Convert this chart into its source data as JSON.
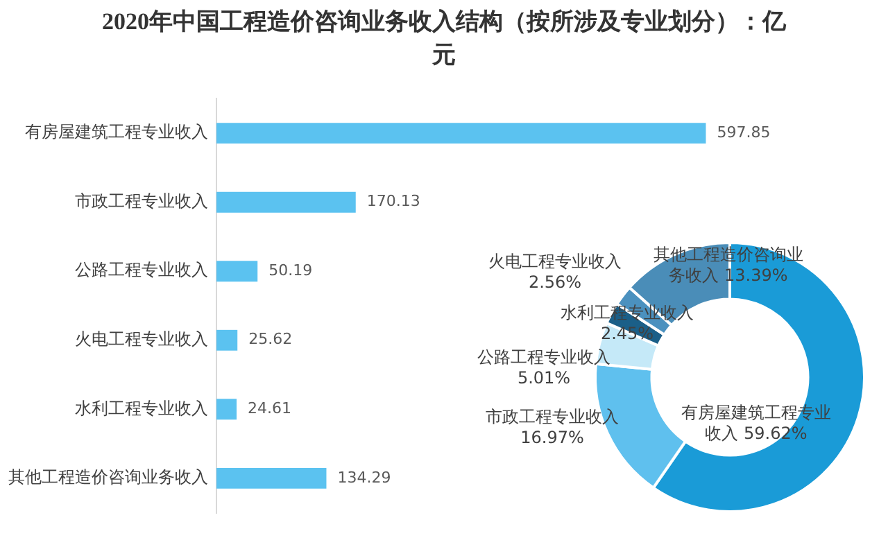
{
  "chart_data": [
    {
      "type": "bar",
      "title": "2020年中国工程造价咨询业务收入结构（按所涉及专业划分）：亿元",
      "orientation": "horizontal",
      "categories": [
        "有房屋建筑工程专业收入",
        "市政工程专业收入",
        "公路工程专业收入",
        "火电工程专业收入",
        "水利工程专业收入",
        "其他工程造价咨询业务收入"
      ],
      "values": [
        597.85,
        170.13,
        50.19,
        25.62,
        24.61,
        134.29
      ],
      "color": "#5bc2f0",
      "data_labels": true,
      "tick_labels": "y"
    },
    {
      "type": "donut",
      "categories": [
        "有房屋建筑工程专业收入",
        "市政工程专业收入",
        "公路工程专业收入",
        "火电工程专业收入",
        "水利工程专业收入",
        "其他工程造价咨询业务收入"
      ],
      "values": [
        59.62,
        16.97,
        5.01,
        2.56,
        2.45,
        13.39
      ],
      "value_labels": [
        "59.62%",
        "16.97%",
        "5.01%",
        "2.56%",
        "2.45%",
        "13.39%"
      ],
      "colors": [
        "#1a9bd7",
        "#5fc0ee",
        "#c5e9f8",
        "#1b5f88",
        "#4b91bf",
        "#4a8db8"
      ]
    }
  ]
}
